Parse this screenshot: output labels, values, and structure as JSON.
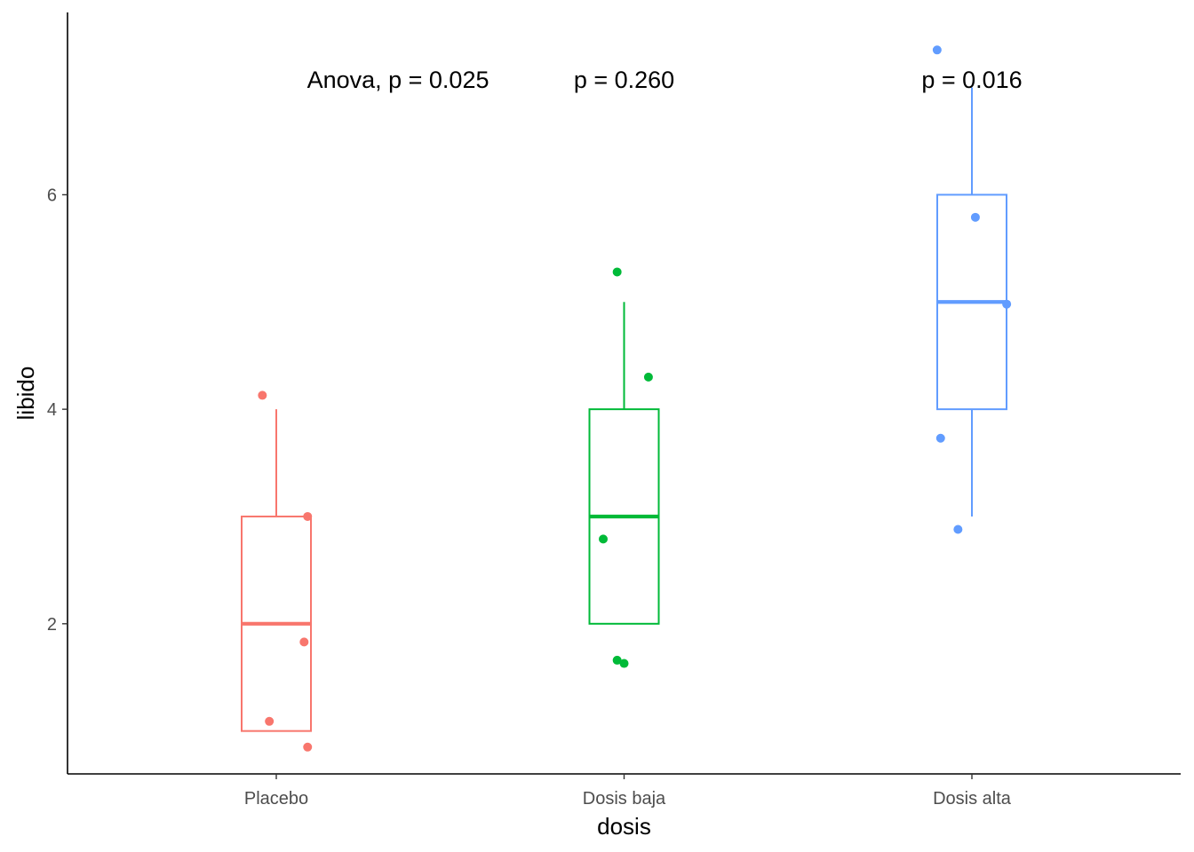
{
  "chart_data": {
    "type": "boxplot",
    "xlabel": "dosis",
    "ylabel": "libido",
    "categories": [
      "Placebo",
      "Dosis baja",
      "Dosis alta"
    ],
    "colors": [
      "#F8766D",
      "#00BA38",
      "#619CFF"
    ],
    "ylim": [
      0.6,
      7.7
    ],
    "yticks": [
      2,
      4,
      6
    ],
    "grid": false,
    "legend": "none",
    "boxes": [
      {
        "category": "Placebo",
        "min": 1,
        "q1": 1,
        "median": 2,
        "q3": 3,
        "max": 4
      },
      {
        "category": "Dosis baja",
        "min": 2,
        "q1": 2,
        "median": 3,
        "q3": 4,
        "max": 5
      },
      {
        "category": "Dosis alta",
        "min": 3,
        "q1": 4,
        "median": 5,
        "q3": 6,
        "max": 7
      }
    ],
    "points": [
      {
        "category": "Placebo",
        "values": [
          4.13,
          3.0,
          1.83,
          1.09,
          0.85
        ],
        "jitter": [
          -0.04,
          0.09,
          0.08,
          -0.02,
          0.09
        ]
      },
      {
        "category": "Dosis baja",
        "values": [
          5.28,
          4.3,
          2.79,
          1.66,
          1.63
        ],
        "jitter": [
          -0.02,
          0.07,
          -0.06,
          -0.02,
          0.0
        ]
      },
      {
        "category": "Dosis alta",
        "values": [
          7.35,
          5.79,
          4.98,
          3.73,
          2.88
        ],
        "jitter": [
          -0.1,
          0.01,
          0.1,
          -0.09,
          -0.04
        ]
      }
    ],
    "annotations": [
      {
        "text": "Anova, p = 0.025",
        "x": 0.35,
        "y": 7.08
      },
      {
        "text": "p = 0.260",
        "x": 1.0,
        "y": 7.08
      },
      {
        "text": "p = 0.016",
        "x": 2.0,
        "y": 7.08
      }
    ]
  }
}
